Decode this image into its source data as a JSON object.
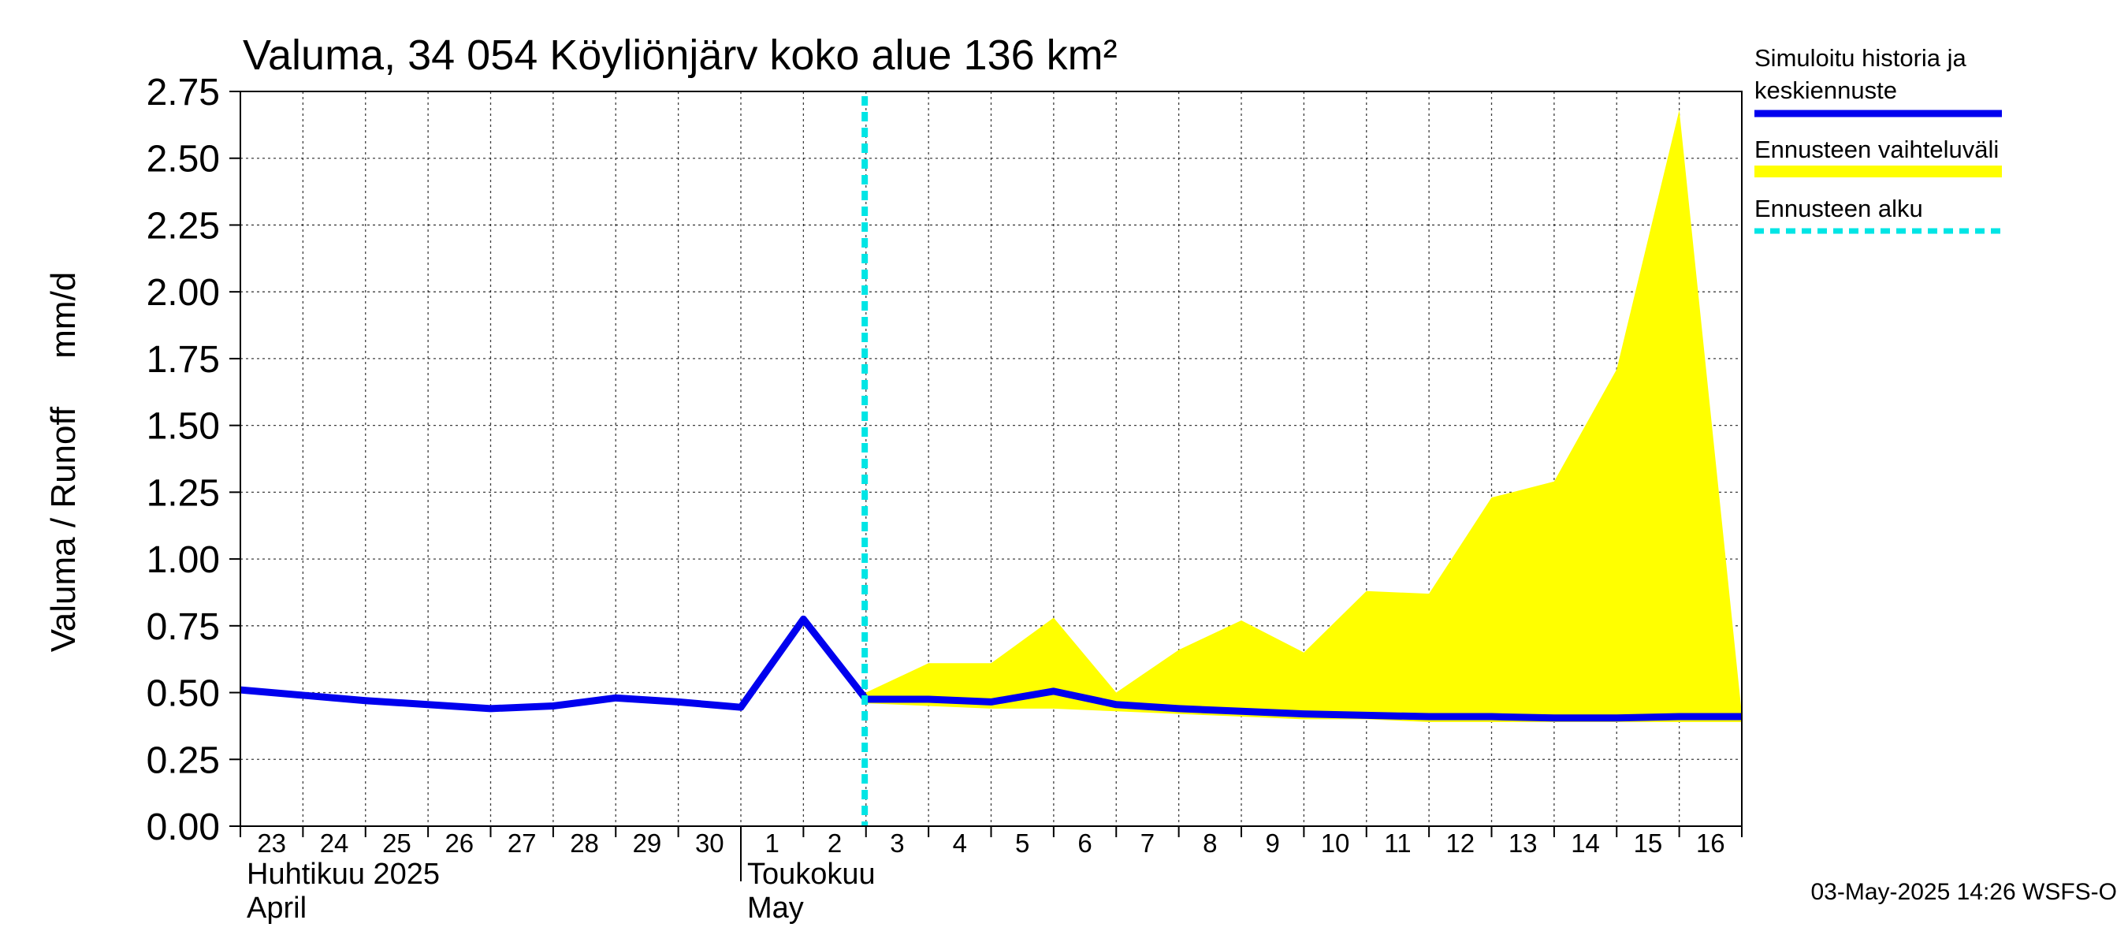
{
  "chart_data": {
    "type": "line",
    "title": "Valuma, 34 054 Köyliönjärv koko alue 136 km²",
    "ylabel": "Valuma / Runoff     mm/d",
    "ylim": [
      0,
      2.75
    ],
    "yticks": [
      "0.00",
      "0.25",
      "0.50",
      "0.75",
      "1.00",
      "1.25",
      "1.50",
      "1.75",
      "2.00",
      "2.25",
      "2.50",
      "2.75"
    ],
    "ytick_values": [
      0,
      0.25,
      0.5,
      0.75,
      1.0,
      1.25,
      1.5,
      1.75,
      2.0,
      2.25,
      2.5,
      2.75
    ],
    "day_labels": [
      "23",
      "24",
      "25",
      "26",
      "27",
      "28",
      "29",
      "30",
      "1",
      "2",
      "3",
      "4",
      "5",
      "6",
      "7",
      "8",
      "9",
      "10",
      "11",
      "12",
      "13",
      "14",
      "15",
      "16"
    ],
    "month_labels": [
      {
        "fi": "Huhtikuu  2025",
        "en": "April",
        "start_index": 0
      },
      {
        "fi": "Toukokuu",
        "en": "May",
        "start_index": 8
      }
    ],
    "forecast_start_index": 9.98,
    "series": [
      {
        "name": "Simuloitu historia ja keskiennuste",
        "color": "#0000ee",
        "x": [
          0,
          1,
          2,
          3,
          4,
          5,
          6,
          7,
          8,
          9,
          10,
          11,
          12,
          13,
          14,
          15,
          16,
          17,
          18,
          19,
          20,
          21,
          22,
          23,
          24
        ],
        "values": [
          0.51,
          0.49,
          0.47,
          0.455,
          0.44,
          0.45,
          0.48,
          0.465,
          0.445,
          0.775,
          0.475,
          0.475,
          0.465,
          0.505,
          0.455,
          0.44,
          0.43,
          0.42,
          0.415,
          0.41,
          0.41,
          0.405,
          0.405,
          0.41,
          0.41
        ]
      }
    ],
    "band": {
      "name": "Ennusteen vaihteluväli",
      "color": "#ffff00",
      "x": [
        10,
        11,
        12,
        13,
        14,
        15,
        16,
        17,
        18,
        19,
        20,
        21,
        22,
        23,
        24
      ],
      "upper": [
        0.5,
        0.61,
        0.61,
        0.78,
        0.5,
        0.66,
        0.77,
        0.65,
        0.88,
        0.87,
        1.23,
        1.29,
        1.71,
        2.68,
        0.42
      ],
      "lower": [
        0.46,
        0.45,
        0.44,
        0.44,
        0.43,
        0.42,
        0.41,
        0.4,
        0.4,
        0.39,
        0.39,
        0.39,
        0.39,
        0.39,
        0.39
      ]
    },
    "legend": [
      {
        "label_line1": "Simuloitu historia ja",
        "label_line2": "keskiennuste",
        "style": "solid",
        "color": "#0000ee"
      },
      {
        "label_line1": "Ennusteen vaihteluväli",
        "label_line2": "",
        "style": "band",
        "color": "#ffff00"
      },
      {
        "label_line1": "Ennusteen alku",
        "label_line2": "",
        "style": "dashed",
        "color": "#00e5e5"
      }
    ],
    "legend_position": "right",
    "grid": true,
    "footer": "03-May-2025 14:26 WSFS-O"
  }
}
